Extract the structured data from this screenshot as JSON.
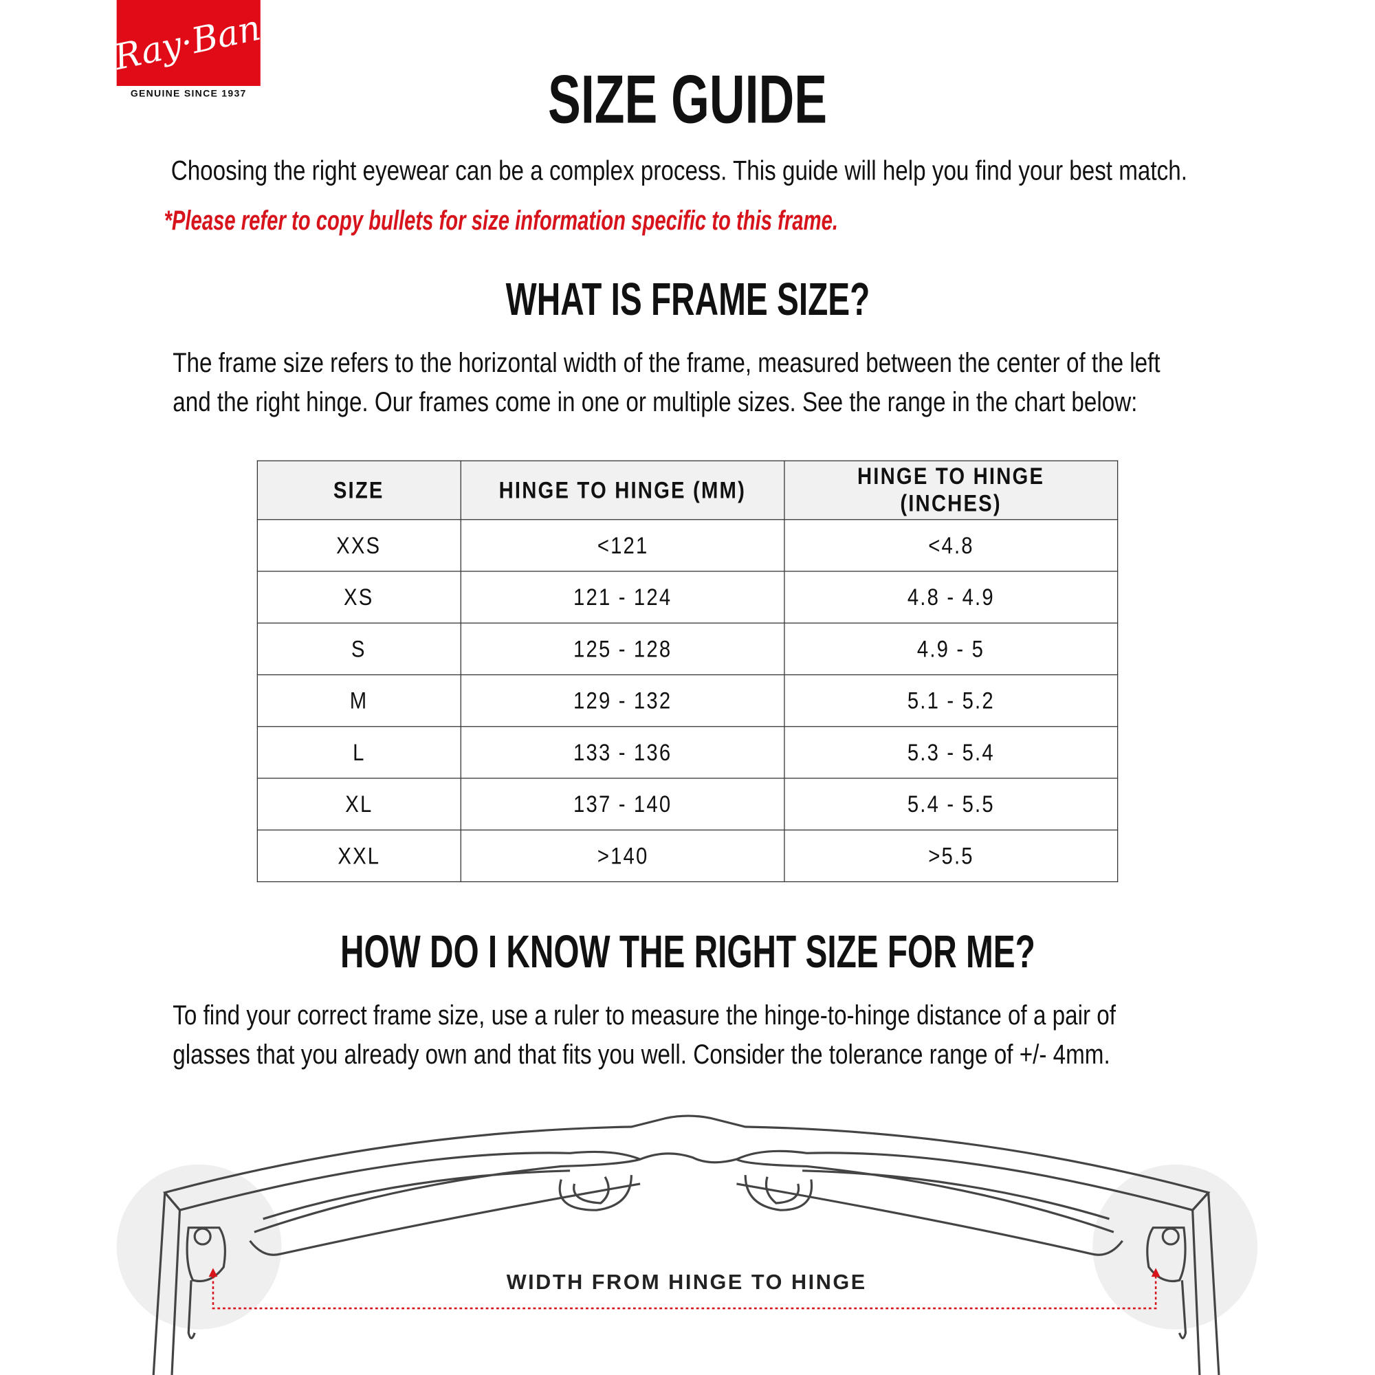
{
  "brand": {
    "logo_text": "Ray-Ban",
    "tagline": "GENUINE SINCE 1937",
    "color": "#e10a17"
  },
  "title": "SIZE GUIDE",
  "intro": "Choosing the right eyewear can be a complex process. This guide will help you find your best match.",
  "note": "*Please refer to copy bullets for size information specific to this frame.",
  "section1": {
    "heading": "WHAT IS FRAME SIZE?",
    "lines": [
      "The frame size refers to the horizontal width of the frame, measured between the center of the left",
      "and the right hinge. Our frames come in one or multiple sizes. See the range in the chart below:"
    ]
  },
  "table": {
    "headers": [
      "SIZE",
      "HINGE TO HINGE (MM)",
      "HINGE TO HINGE (INCHES)"
    ],
    "rows": [
      [
        "XXS",
        "<121",
        "<4.8"
      ],
      [
        "XS",
        "121 - 124",
        "4.8 - 4.9"
      ],
      [
        "S",
        "125 - 128",
        "4.9 - 5"
      ],
      [
        "M",
        "129 - 132",
        "5.1 - 5.2"
      ],
      [
        "L",
        "133 - 136",
        "5.3 - 5.4"
      ],
      [
        "XL",
        "137 - 140",
        "5.4 - 5.5"
      ],
      [
        "XXL",
        ">140",
        ">5.5"
      ]
    ]
  },
  "section2": {
    "heading": "HOW DO I KNOW THE RIGHT SIZE FOR ME?",
    "lines": [
      "To find your correct frame size, use a ruler to measure the hinge-to-hinge distance of a pair of",
      "glasses that you already own and that fits you well. Consider the tolerance range of +/- 4mm."
    ]
  },
  "diagram": {
    "label": "WIDTH FROM HINGE TO HINGE",
    "arrow_color": "#d7131c"
  }
}
